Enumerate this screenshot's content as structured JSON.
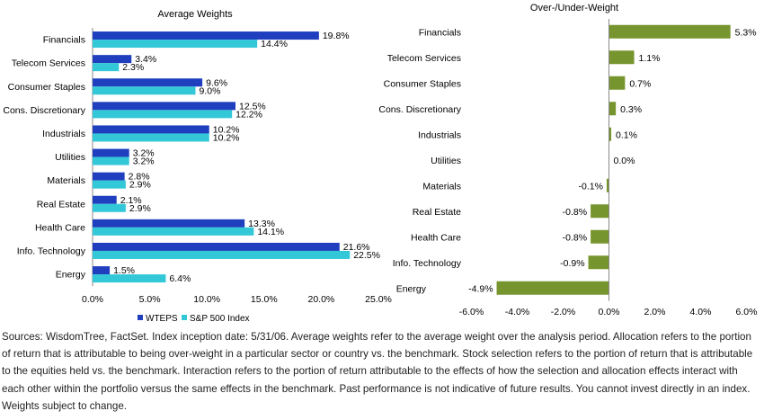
{
  "chart_data": [
    {
      "type": "bar",
      "orientation": "horizontal",
      "title": "Average Weights",
      "categories": [
        "Financials",
        "Telecom Services",
        "Consumer Staples",
        "Cons. Discretionary",
        "Industrials",
        "Utilities",
        "Materials",
        "Real Estate",
        "Health Care",
        "Info. Technology",
        "Energy"
      ],
      "series": [
        {
          "name": "WTEPS",
          "color": "#1f3fbf",
          "values": [
            19.8,
            3.4,
            9.6,
            12.5,
            10.2,
            3.2,
            2.8,
            2.1,
            13.3,
            21.6,
            1.5
          ]
        },
        {
          "name": "S&P 500 Index",
          "color": "#33c8d8",
          "values": [
            14.4,
            2.3,
            9.0,
            12.2,
            10.2,
            3.2,
            2.9,
            2.9,
            14.1,
            22.5,
            6.4
          ]
        }
      ],
      "value_suffix": "%",
      "xlim": [
        0,
        25
      ],
      "x_ticks": [
        "0.0%",
        "5.0%",
        "10.0%",
        "15.0%",
        "20.0%",
        "25.0%"
      ],
      "legend": "bottom",
      "grid": false
    },
    {
      "type": "bar",
      "orientation": "horizontal",
      "title": "Over-/Under-Weight",
      "categories": [
        "Financials",
        "Telecom Services",
        "Consumer Staples",
        "Cons. Discretionary",
        "Industrials",
        "Utilities",
        "Materials",
        "Real Estate",
        "Health Care",
        "Info. Technology",
        "Energy"
      ],
      "series": [
        {
          "color": "#77952e",
          "values": [
            5.3,
            1.1,
            0.7,
            0.3,
            0.1,
            0.0,
            -0.1,
            -0.8,
            -0.8,
            -0.9,
            -4.9
          ]
        }
      ],
      "value_suffix": "%",
      "xlim": [
        -6,
        6
      ],
      "x_ticks": [
        "-6.0%",
        "-4.0%",
        "-2.0%",
        "0.0%",
        "2.0%",
        "4.0%",
        "6.0%"
      ],
      "grid": false
    }
  ],
  "footnote": "Sources: WisdomTree, FactSet. Index inception date: 5/31/06. Average weights refer to the average weight over the analysis period. Allocation refers to the portion of return that is attributable to being over-weight in a particular sector or country vs. the benchmark. Stock selection refers to the portion of return that is attributable to the equities held vs. the benchmark. Interaction refers to the portion of return attributable to the effects of how the selection and allocation effects interact with each other within the portfolio versus the same effects in the benchmark. Past performance is not indicative of future results. You cannot invest directly in an index. Weights subject to change."
}
